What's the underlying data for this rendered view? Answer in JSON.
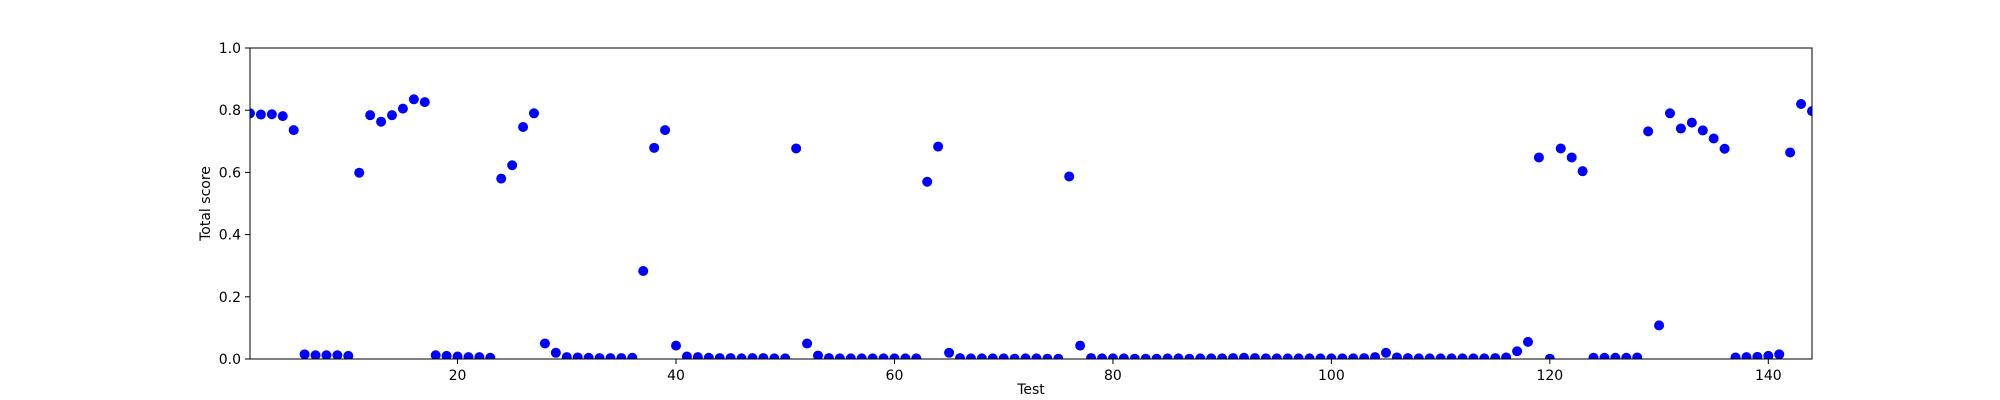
{
  "chart_data": {
    "type": "scatter",
    "title": "",
    "xlabel": "Test",
    "ylabel": "Total score",
    "xlim": [
      1,
      144
    ],
    "ylim": [
      0,
      1.0
    ],
    "xticks": [
      20,
      40,
      60,
      80,
      100,
      120,
      140
    ],
    "xtick_labels": [
      "20",
      "40",
      "60",
      "80",
      "100",
      "120",
      "140"
    ],
    "yticks": [
      0,
      0.2,
      0.4,
      0.6,
      0.8,
      1.0
    ],
    "ytick_labels": [
      "0.0",
      "0.2",
      "0.4",
      "0.6",
      "0.8",
      "1.0"
    ],
    "grid": false,
    "marker_color": "#0000ff",
    "x": [
      1,
      2,
      3,
      4,
      5,
      6,
      7,
      8,
      9,
      10,
      11,
      12,
      13,
      14,
      15,
      16,
      17,
      18,
      19,
      20,
      21,
      22,
      23,
      24,
      25,
      26,
      27,
      28,
      29,
      30,
      31,
      32,
      33,
      34,
      35,
      36,
      37,
      38,
      39,
      40,
      41,
      42,
      43,
      44,
      45,
      46,
      47,
      48,
      49,
      50,
      51,
      52,
      53,
      54,
      55,
      56,
      57,
      58,
      59,
      60,
      61,
      62,
      63,
      64,
      65,
      66,
      67,
      68,
      69,
      70,
      71,
      72,
      73,
      74,
      75,
      76,
      77,
      78,
      79,
      80,
      81,
      82,
      83,
      84,
      85,
      86,
      87,
      88,
      89,
      90,
      91,
      92,
      93,
      94,
      95,
      96,
      97,
      98,
      99,
      100,
      101,
      102,
      103,
      104,
      105,
      106,
      107,
      108,
      109,
      110,
      111,
      112,
      113,
      114,
      115,
      116,
      117,
      118,
      119,
      120,
      121,
      122,
      123,
      124,
      125,
      126,
      127,
      128,
      129,
      130,
      131,
      132,
      133,
      134,
      135,
      136,
      137,
      138,
      139,
      140,
      141,
      142,
      143,
      144
    ],
    "y": [
      0.79,
      0.786,
      0.787,
      0.781,
      0.736,
      0.015,
      0.012,
      0.012,
      0.012,
      0.01,
      0.599,
      0.784,
      0.763,
      0.784,
      0.805,
      0.835,
      0.826,
      0.012,
      0.01,
      0.008,
      0.006,
      0.006,
      0.004,
      0.58,
      0.623,
      0.746,
      0.79,
      0.05,
      0.02,
      0.006,
      0.005,
      0.004,
      0.003,
      0.003,
      0.003,
      0.004,
      0.283,
      0.679,
      0.736,
      0.043,
      0.008,
      0.006,
      0.004,
      0.003,
      0.003,
      0.002,
      0.003,
      0.003,
      0.002,
      0.002,
      0.677,
      0.05,
      0.011,
      0.003,
      0.002,
      0.002,
      0.002,
      0.002,
      0.002,
      0.002,
      0.002,
      0.002,
      0.57,
      0.683,
      0.02,
      0.003,
      0.002,
      0.002,
      0.002,
      0.002,
      0.001,
      0.002,
      0.002,
      0.001,
      0.001,
      0.587,
      0.043,
      0.003,
      0.002,
      0.002,
      0.002,
      0.001,
      0.001,
      0.001,
      0.002,
      0.002,
      0.001,
      0.002,
      0.002,
      0.002,
      0.003,
      0.004,
      0.003,
      0.002,
      0.002,
      0.002,
      0.002,
      0.002,
      0.002,
      0.002,
      0.002,
      0.002,
      0.003,
      0.006,
      0.02,
      0.005,
      0.003,
      0.002,
      0.002,
      0.002,
      0.002,
      0.002,
      0.002,
      0.002,
      0.003,
      0.005,
      0.025,
      0.055,
      0.648,
      0.001,
      0.677,
      0.648,
      0.604,
      0.004,
      0.004,
      0.004,
      0.004,
      0.005,
      0.732,
      0.108,
      0.79,
      0.741,
      0.76,
      0.735,
      0.709,
      0.676,
      0.005,
      0.006,
      0.007,
      0.01,
      0.015,
      0.664,
      0.82,
      0.797
    ]
  }
}
